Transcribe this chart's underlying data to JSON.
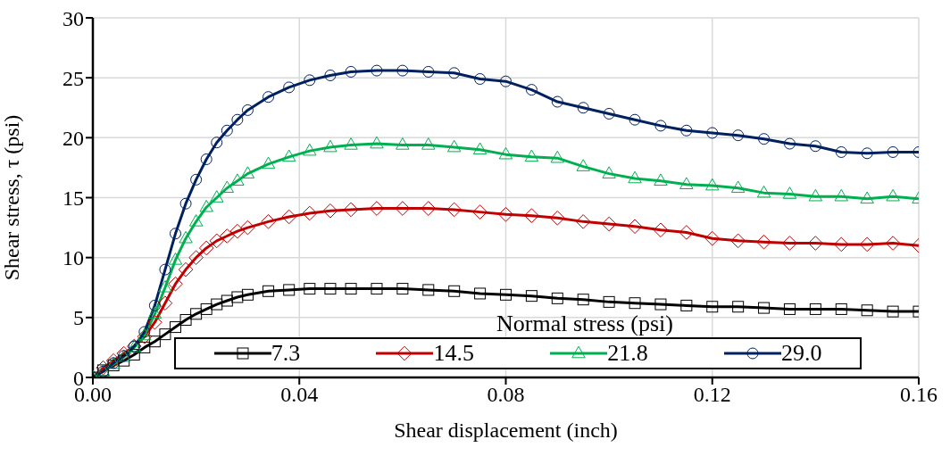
{
  "chart_data": {
    "type": "line",
    "xlabel": "Shear displacement (inch)",
    "ylabel": "Shear stress, τ (psi)",
    "legend_title": "Normal stress (psi)",
    "legend": "bottom",
    "grid": true,
    "xlim": [
      0,
      0.16
    ],
    "ylim": [
      0,
      30
    ],
    "xticks": [
      {
        "value": 0,
        "label": "0.00"
      },
      {
        "value": 0.04,
        "label": "0.04"
      },
      {
        "value": 0.08,
        "label": "0.08"
      },
      {
        "value": 0.12,
        "label": "0.12"
      },
      {
        "value": 0.16,
        "label": "0.16"
      }
    ],
    "yticks": [
      0,
      5,
      10,
      15,
      20,
      25,
      30
    ],
    "x": [
      0,
      0.002,
      0.004,
      0.006,
      0.008,
      0.01,
      0.012,
      0.014,
      0.016,
      0.018,
      0.02,
      0.022,
      0.024,
      0.026,
      0.028,
      0.03,
      0.034,
      0.038,
      0.042,
      0.046,
      0.05,
      0.055,
      0.06,
      0.065,
      0.07,
      0.075,
      0.08,
      0.085,
      0.09,
      0.095,
      0.1,
      0.105,
      0.11,
      0.115,
      0.12,
      0.125,
      0.13,
      0.135,
      0.14,
      0.145,
      0.15,
      0.155,
      0.16
    ],
    "series": [
      {
        "name": "7.3",
        "color": "#000000",
        "marker": "square",
        "values": [
          0,
          0.6,
          1.0,
          1.4,
          1.9,
          2.5,
          3.0,
          3.6,
          4.2,
          4.8,
          5.3,
          5.7,
          6.1,
          6.4,
          6.7,
          6.9,
          7.2,
          7.3,
          7.4,
          7.4,
          7.4,
          7.4,
          7.4,
          7.3,
          7.2,
          7.0,
          6.9,
          6.8,
          6.6,
          6.5,
          6.3,
          6.2,
          6.1,
          6.0,
          5.9,
          5.9,
          5.8,
          5.7,
          5.7,
          5.7,
          5.6,
          5.5,
          5.5
        ]
      },
      {
        "name": "14.5",
        "color": "#c00000",
        "marker": "diamond",
        "values": [
          0,
          0.8,
          1.4,
          2.0,
          2.6,
          3.4,
          4.6,
          6.2,
          7.8,
          9.0,
          10.0,
          10.8,
          11.4,
          11.8,
          12.2,
          12.5,
          13.0,
          13.4,
          13.7,
          13.9,
          14.0,
          14.1,
          14.1,
          14.1,
          14.0,
          13.8,
          13.6,
          13.5,
          13.3,
          13.0,
          12.8,
          12.6,
          12.3,
          12.1,
          11.6,
          11.4,
          11.3,
          11.2,
          11.2,
          11.1,
          11.1,
          11.2,
          11.0
        ]
      },
      {
        "name": "21.8",
        "color": "#00b050",
        "marker": "triangle",
        "values": [
          0,
          0.5,
          1.1,
          1.7,
          2.5,
          3.5,
          5.3,
          7.5,
          9.8,
          11.6,
          13,
          14.2,
          15,
          15.8,
          16.4,
          17,
          17.8,
          18.4,
          18.9,
          19.2,
          19.4,
          19.5,
          19.4,
          19.4,
          19.2,
          19.0,
          18.6,
          18.4,
          18.3,
          17.6,
          17.0,
          16.6,
          16.4,
          16.1,
          16.0,
          15.8,
          15.4,
          15.3,
          15.1,
          15.1,
          14.9,
          15.1,
          14.9
        ]
      },
      {
        "name": "29.0",
        "color": "#002060",
        "marker": "circle",
        "values": [
          0,
          0.5,
          1.2,
          1.8,
          2.6,
          3.8,
          6,
          9,
          12,
          14.5,
          16.5,
          18.2,
          19.6,
          20.6,
          21.5,
          22.3,
          23.4,
          24.2,
          24.8,
          25.2,
          25.5,
          25.6,
          25.6,
          25.5,
          25.4,
          24.9,
          24.7,
          24.0,
          23.0,
          22.5,
          22.0,
          21.5,
          21.0,
          20.6,
          20.4,
          20.2,
          19.9,
          19.5,
          19.3,
          18.8,
          18.7,
          18.8,
          18.8
        ]
      }
    ]
  }
}
